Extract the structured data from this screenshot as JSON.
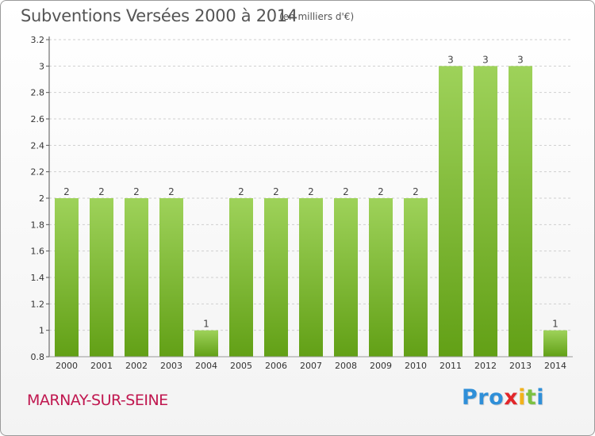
{
  "header": {
    "title": "Subventions Versées 2000 à 2014",
    "subtitle": "(en milliers d'€)"
  },
  "footer": {
    "commune": "MARNAY-SUR-SEINE",
    "logo_letters": [
      "P",
      "r",
      "o",
      "x",
      "i",
      "t",
      "i"
    ],
    "logo_colors": [
      "#2f8fd8",
      "#2f8fd8",
      "#2f8fd8",
      "#e2262a",
      "#f2b21b",
      "#7cc142",
      "#2f8fd8"
    ]
  },
  "colors": {
    "bar_light": "#9ed25a",
    "bar_dark": "#62a016",
    "grid": "#cfcfcf",
    "axis": "#555555"
  },
  "chart_data": {
    "type": "bar",
    "title": "Subventions Versées 2000 à 2014",
    "subtitle": "(en milliers d'€)",
    "xlabel": "",
    "ylabel": "",
    "categories": [
      "2000",
      "2001",
      "2002",
      "2003",
      "2004",
      "2005",
      "2006",
      "2007",
      "2008",
      "2009",
      "2010",
      "2011",
      "2012",
      "2013",
      "2014"
    ],
    "values": [
      2,
      2,
      2,
      2,
      1,
      2,
      2,
      2,
      2,
      2,
      2,
      3,
      3,
      3,
      1
    ],
    "ylim": [
      0.8,
      3.2
    ],
    "yticks": [
      "0.8",
      "1",
      "1.2",
      "1.4",
      "1.6",
      "1.8",
      "2",
      "2.2",
      "2.4",
      "2.6",
      "2.8",
      "3",
      "3.2"
    ],
    "grid": true,
    "grid_style": "dashed horizontal"
  }
}
